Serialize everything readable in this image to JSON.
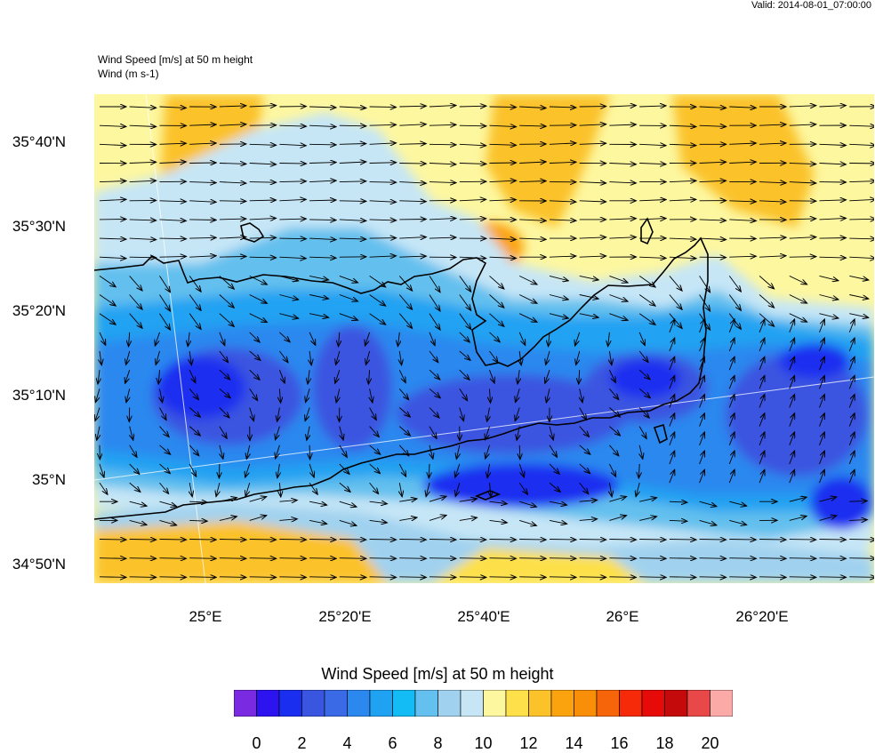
{
  "valid_time": "Valid: 2014-08-01_07:00:00",
  "header": {
    "line1": "Wind Speed [m/s] at 50 m height",
    "line2": "Wind   (m s-1)"
  },
  "axes": {
    "lat_labels": [
      "35°40'N",
      "35°30'N",
      "35°20'N",
      "35°10'N",
      "35°N",
      "34°50'N"
    ],
    "lon_labels": [
      "25°E",
      "25°20'E",
      "25°40'E",
      "26°E",
      "26°20'E"
    ]
  },
  "colorbar": {
    "title": "Wind Speed [m/s] at 50 m height",
    "tick_labels": [
      "0",
      "2",
      "4",
      "6",
      "8",
      "10",
      "12",
      "14",
      "16",
      "18",
      "20"
    ],
    "colors": [
      "#7a2be2",
      "#2d13f0",
      "#1a2ef0",
      "#3a55e0",
      "#3a6ae6",
      "#2a88ef",
      "#20a2f2",
      "#13bcf4",
      "#64c0ee",
      "#a0d2ef",
      "#c6e6f6",
      "#fdf7a0",
      "#fde04a",
      "#fbc22a",
      "#fba30f",
      "#f98e08",
      "#f6650a",
      "#f62a08",
      "#e60a08",
      "#c40a0a",
      "#e84848",
      "#fcaaa8"
    ]
  },
  "colors": {
    "calm_blue": "#1a2ef0",
    "mid_blue": "#20a2f2",
    "light_blue": "#c6e6f6",
    "pale_yellow": "#fdf7a0",
    "orange": "#fbc22a"
  }
}
